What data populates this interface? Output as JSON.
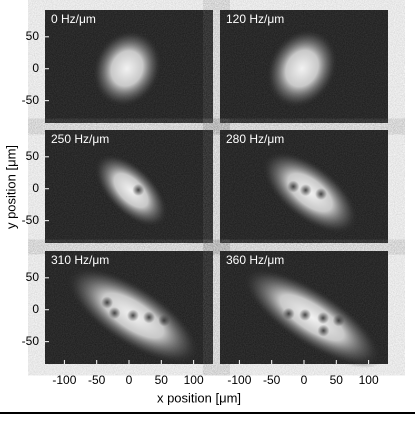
{
  "figure": {
    "panels": [
      {
        "label": "0 Hz/μm"
      },
      {
        "label": "120 Hz/μm"
      },
      {
        "label": "250 Hz/μm"
      },
      {
        "label": "280 Hz/μm"
      },
      {
        "label": "310 Hz/μm"
      },
      {
        "label": "360 Hz/μm"
      }
    ],
    "xlabel": "x position [μm]",
    "ylabel": "y position [μm]",
    "xlim": [
      -130,
      130
    ],
    "ylim": [
      -85,
      92
    ],
    "xticks": [
      -100,
      -50,
      0,
      50,
      100
    ],
    "yticks": [
      50,
      0,
      -50
    ]
  }
}
